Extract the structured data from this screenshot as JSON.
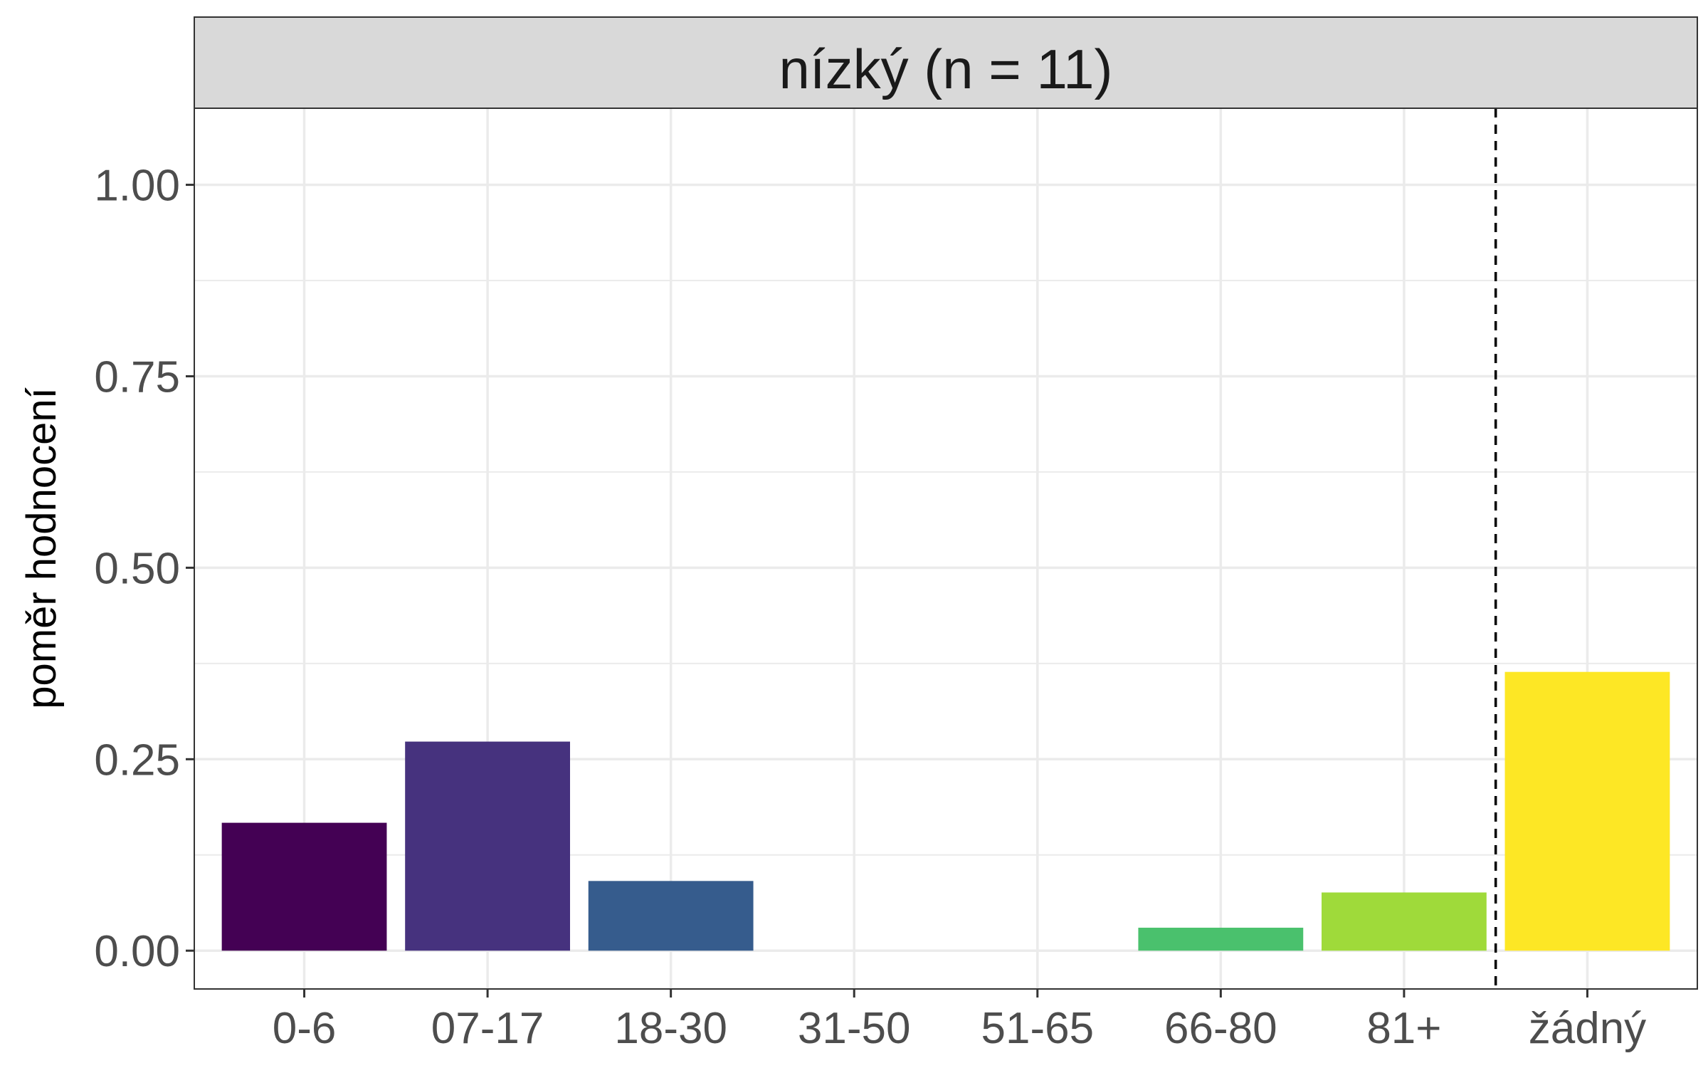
{
  "chart_data": {
    "type": "bar",
    "panel_title": "nízký (n = 11)",
    "ylabel": "poměr hodnocení",
    "xlabel": "",
    "categories": [
      "0-6",
      "07-17",
      "18-30",
      "31-50",
      "51-65",
      "66-80",
      "81+",
      "žádný"
    ],
    "values": [
      0.167,
      0.273,
      0.091,
      0.0,
      0.0,
      0.03,
      0.076,
      0.364
    ],
    "colors": [
      "#440154",
      "#46327E",
      "#365C8D",
      "#277F8E",
      "#1FA187",
      "#4AC16D",
      "#9FDA3A",
      "#FDE725"
    ],
    "ylim": [
      -0.05,
      1.1
    ],
    "yticks": [
      0.0,
      0.25,
      0.5,
      0.75,
      1.0
    ],
    "ytick_labels": [
      "0.00",
      "0.25",
      "0.50",
      "0.75",
      "1.00"
    ],
    "reference_line": {
      "style": "dashed",
      "between": [
        "81+",
        "žádný"
      ]
    },
    "grid": true,
    "legend": "none"
  }
}
